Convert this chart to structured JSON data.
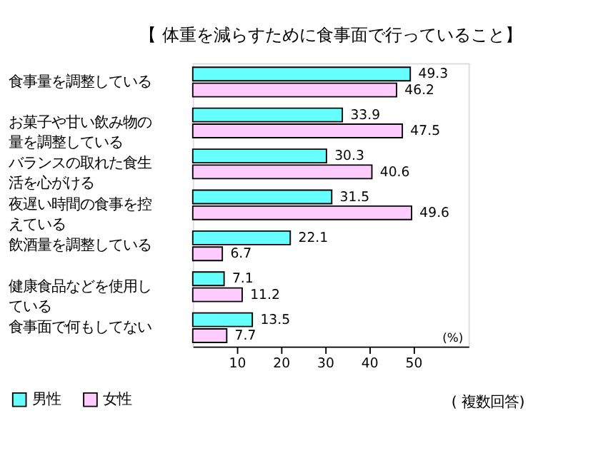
{
  "chart_data": {
    "type": "bar",
    "orientation": "horizontal",
    "title": "【 体重を減らすために食事面で行っていること】",
    "categories": [
      "食事量を調整している",
      "お菓子や甘い飲み物の量を調整している",
      "バランスの取れた食生活を心がける",
      "夜遅い時間の食事を控えている",
      "飲酒量を調整している",
      "健康食品などを使用している",
      "食事面で何もしてない"
    ],
    "series": [
      {
        "name": "男性",
        "color": "#66ffff",
        "values": [
          49.3,
          33.9,
          30.3,
          31.5,
          22.1,
          7.1,
          13.5
        ]
      },
      {
        "name": "女性",
        "color": "#ffccff",
        "values": [
          46.2,
          47.5,
          40.6,
          49.6,
          6.7,
          11.2,
          7.7
        ]
      }
    ],
    "xlabel": "(%)",
    "xlim": [
      0,
      62.5
    ],
    "xticks": [
      10,
      20,
      30,
      40,
      50
    ],
    "data_labels": true,
    "legend": "bottom left",
    "grid": false,
    "annotations": [
      "( 複数回答)"
    ]
  }
}
